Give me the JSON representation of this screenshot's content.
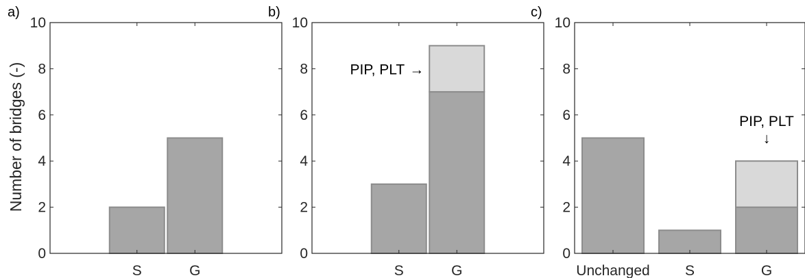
{
  "figure": {
    "ylabel": "Number of bridges (-)"
  },
  "colors": {
    "base": "#a6a6a6",
    "stack": "#d9d9d9",
    "edge": "#8c8c8c",
    "axis": "#262626"
  },
  "chart_data": [
    {
      "type": "bar",
      "panel_label": "a)",
      "categories": [
        "",
        "S",
        "G",
        ""
      ],
      "series": [
        {
          "values": [
            0,
            2,
            5,
            0
          ]
        }
      ],
      "ylim": [
        0,
        10
      ],
      "yticks": [
        0,
        2,
        4,
        6,
        8,
        10
      ],
      "annotation": null
    },
    {
      "type": "bar",
      "panel_label": "b)",
      "categories": [
        "",
        "S",
        "G",
        ""
      ],
      "series": [
        {
          "values": [
            0,
            3,
            7,
            0
          ]
        },
        {
          "values": [
            0,
            0,
            2,
            0
          ]
        }
      ],
      "ylim": [
        0,
        10
      ],
      "yticks": [
        0,
        2,
        4,
        6,
        8,
        10
      ],
      "annotation": {
        "text": "PIP, PLT",
        "arrow": "→",
        "category_index": 2,
        "y": 8.0,
        "direction": "right"
      }
    },
    {
      "type": "bar",
      "panel_label": "c)",
      "categories": [
        "Unchanged",
        "S",
        "G"
      ],
      "series": [
        {
          "values": [
            5,
            1,
            2
          ]
        },
        {
          "values": [
            0,
            0,
            2
          ]
        }
      ],
      "ylim": [
        0,
        10
      ],
      "yticks": [
        0,
        2,
        4,
        6,
        8,
        10
      ],
      "annotation": {
        "text": "PIP, PLT",
        "arrow": "↓",
        "category_index": 2,
        "y": 5.4,
        "direction": "down"
      }
    }
  ]
}
